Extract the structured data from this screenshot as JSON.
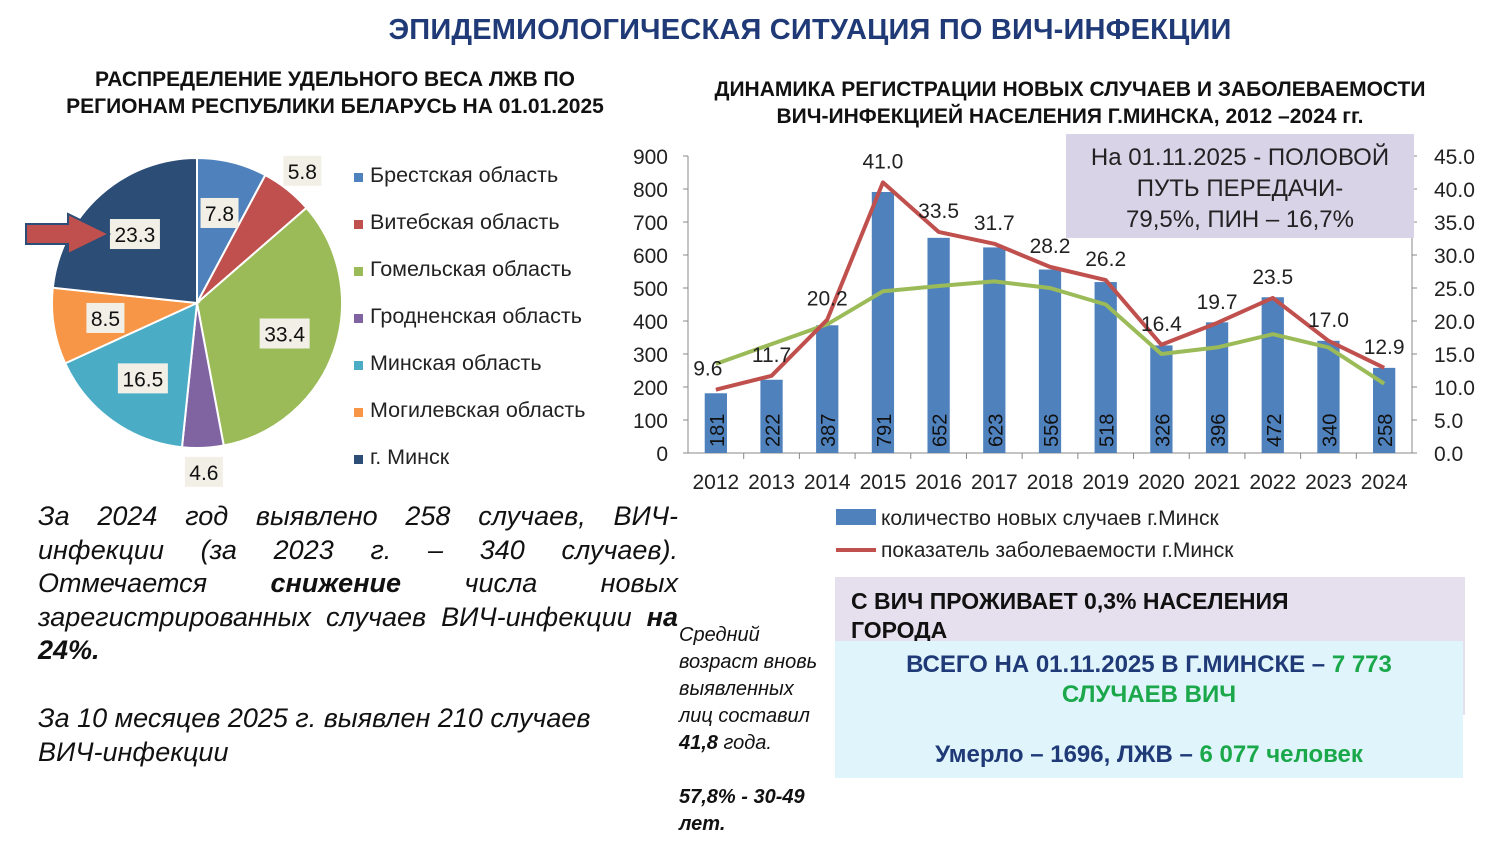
{
  "title": "ЭПИДЕМИОЛОГИЧЕСКАЯ СИТУАЦИЯ ПО ВИЧ-ИНФЕКЦИИ",
  "pie_title": "РАСПРЕДЕЛЕНИЕ УДЕЛЬНОГО ВЕСА ЛЖВ ПО РЕГИОНАМ РЕСПУБЛИКИ БЕЛАРУСЬ НА 01.01.2025",
  "bar_title_line1": "ДИНАМИКА РЕГИСТРАЦИИ НОВЫХ СЛУЧАЕВ И  ЗАБОЛЕВАЕМОСТИ",
  "bar_title_line2": "ВИЧ-ИНФЕКЦИЕЙ НАСЕЛЕНИЯ Г.МИНСКА, 2012 –2024 гг.",
  "chart_data": [
    {
      "type": "pie",
      "title": "РАСПРЕДЕЛЕНИЕ УДЕЛЬНОГО ВЕСА ЛЖВ ПО РЕГИОНАМ РЕСПУБЛИКИ БЕЛАРУСЬ НА 01.01.2025",
      "labels": [
        "Брестская область",
        "Витебская область",
        "Гомельская область",
        "Гродненская область",
        "Минская область",
        "Могилевская область",
        "г. Минск"
      ],
      "values": [
        7.8,
        5.8,
        33.4,
        4.6,
        16.5,
        8.5,
        23.3
      ],
      "value_labels": [
        "7.8",
        "5.8",
        "33.4",
        "4.6",
        "16.5",
        "8.5",
        "23.3"
      ],
      "colors": [
        "#4f81bd",
        "#c0504d",
        "#9bbb59",
        "#8064a2",
        "#4bacc6",
        "#f79646",
        "#2c4d75"
      ],
      "highlight": "г. Минск",
      "legend_position": "right"
    },
    {
      "type": "bar",
      "title": "ДИНАМИКА РЕГИСТРАЦИИ НОВЫХ СЛУЧАЕВ И  ЗАБОЛЕВАЕМОСТИ ВИЧ-ИНФЕКЦИЕЙ НАСЕЛЕНИЯ Г.МИНСКА, 2012 –2024 гг.",
      "categories": [
        "2012",
        "2013",
        "2014",
        "2015",
        "2016",
        "2017",
        "2018",
        "2019",
        "2020",
        "2021",
        "2022",
        "2023",
        "2024"
      ],
      "series": [
        {
          "name": "количество новых случаев г.Минск",
          "kind": "bar",
          "axis": "left",
          "color": "#4f81bd",
          "values": [
            181,
            222,
            387,
            791,
            652,
            623,
            556,
            518,
            326,
            396,
            472,
            340,
            258
          ],
          "labels": [
            "181",
            "222",
            "387",
            "791",
            "652",
            "623",
            "556",
            "518",
            "326",
            "396",
            "472",
            "340",
            "258"
          ]
        },
        {
          "name": "показатель заболеваемости г.Минск",
          "kind": "line",
          "axis": "right",
          "color": "#c0504d",
          "values": [
            9.6,
            11.7,
            20.2,
            41.0,
            33.5,
            31.7,
            28.2,
            26.2,
            16.4,
            19.7,
            23.5,
            17.0,
            12.9
          ],
          "labels": [
            "9.6",
            "11.7",
            "20.2",
            "41.0",
            "33.5",
            "31.7",
            "28.2",
            "26.2",
            "16.4",
            "19.7",
            "23.5",
            "17.0",
            "12.9"
          ]
        },
        {
          "kind": "line",
          "axis": "right",
          "color": "#9bbb59",
          "values": [
            13.5,
            16.5,
            19.5,
            24.5,
            25.3,
            26.0,
            25.0,
            22.5,
            15.0,
            16.0,
            18.0,
            16.0,
            10.5
          ]
        }
      ],
      "y_left": {
        "min": 0,
        "max": 900,
        "ticks": [
          "0",
          "100",
          "200",
          "300",
          "400",
          "500",
          "600",
          "700",
          "800",
          "900"
        ]
      },
      "y_right": {
        "min": 0,
        "max": 45,
        "ticks": [
          "0.0",
          "5.0",
          "10.0",
          "15.0",
          "20.0",
          "25.0",
          "30.0",
          "35.0",
          "40.0",
          "45.0"
        ]
      },
      "grid": false,
      "legend_position": "bottom"
    }
  ],
  "purple_note": {
    "line1": "На 01.11.2025 - ПОЛОВОЙ",
    "line2": "ПУТЬ ПЕРЕДАЧИ-",
    "line3": "79,5%, ПИН – 16,7%"
  },
  "paragraph1": {
    "line1": "За 2024 год выявлено 258 случаев, ВИЧ-",
    "line2": "инфекции (за 2023 г. – 340 случаев).",
    "line3_a": "Отмечается ",
    "line3_bold": "снижение",
    "line3_b": " числа новых",
    "line4_a": "зарегистрированных случаев ВИЧ-инфекции ",
    "line4_bold": "на",
    "line5_bold": "24%."
  },
  "paragraph2": {
    "line1": "За 10  месяцев 2025 г. выявлен 210 случаев",
    "line2": "ВИЧ-инфекции"
  },
  "age_note": {
    "l1": "Средний",
    "l2": "возраст вновь",
    "l3": "выявленных",
    "l4": "лиц   составил",
    "l5_bold": "41,8",
    "l5_rest": " года.",
    "l6": "57,8% - 30-49",
    "l7": "лет."
  },
  "population_box": {
    "line1": "С ВИЧ ПРОЖИВАЕТ 0,3% НАСЕЛЕНИЯ",
    "line2": "ГОРОДА"
  },
  "total_box": {
    "a": "ВСЕГО НА 01.11.2025 В Г.МИНСКЕ – ",
    "b": " 7 773",
    "c": "СЛУЧАЕВ ВИЧ",
    "d": "Умерло – 1696, ЛЖВ – ",
    "e": "6 077 человек"
  }
}
